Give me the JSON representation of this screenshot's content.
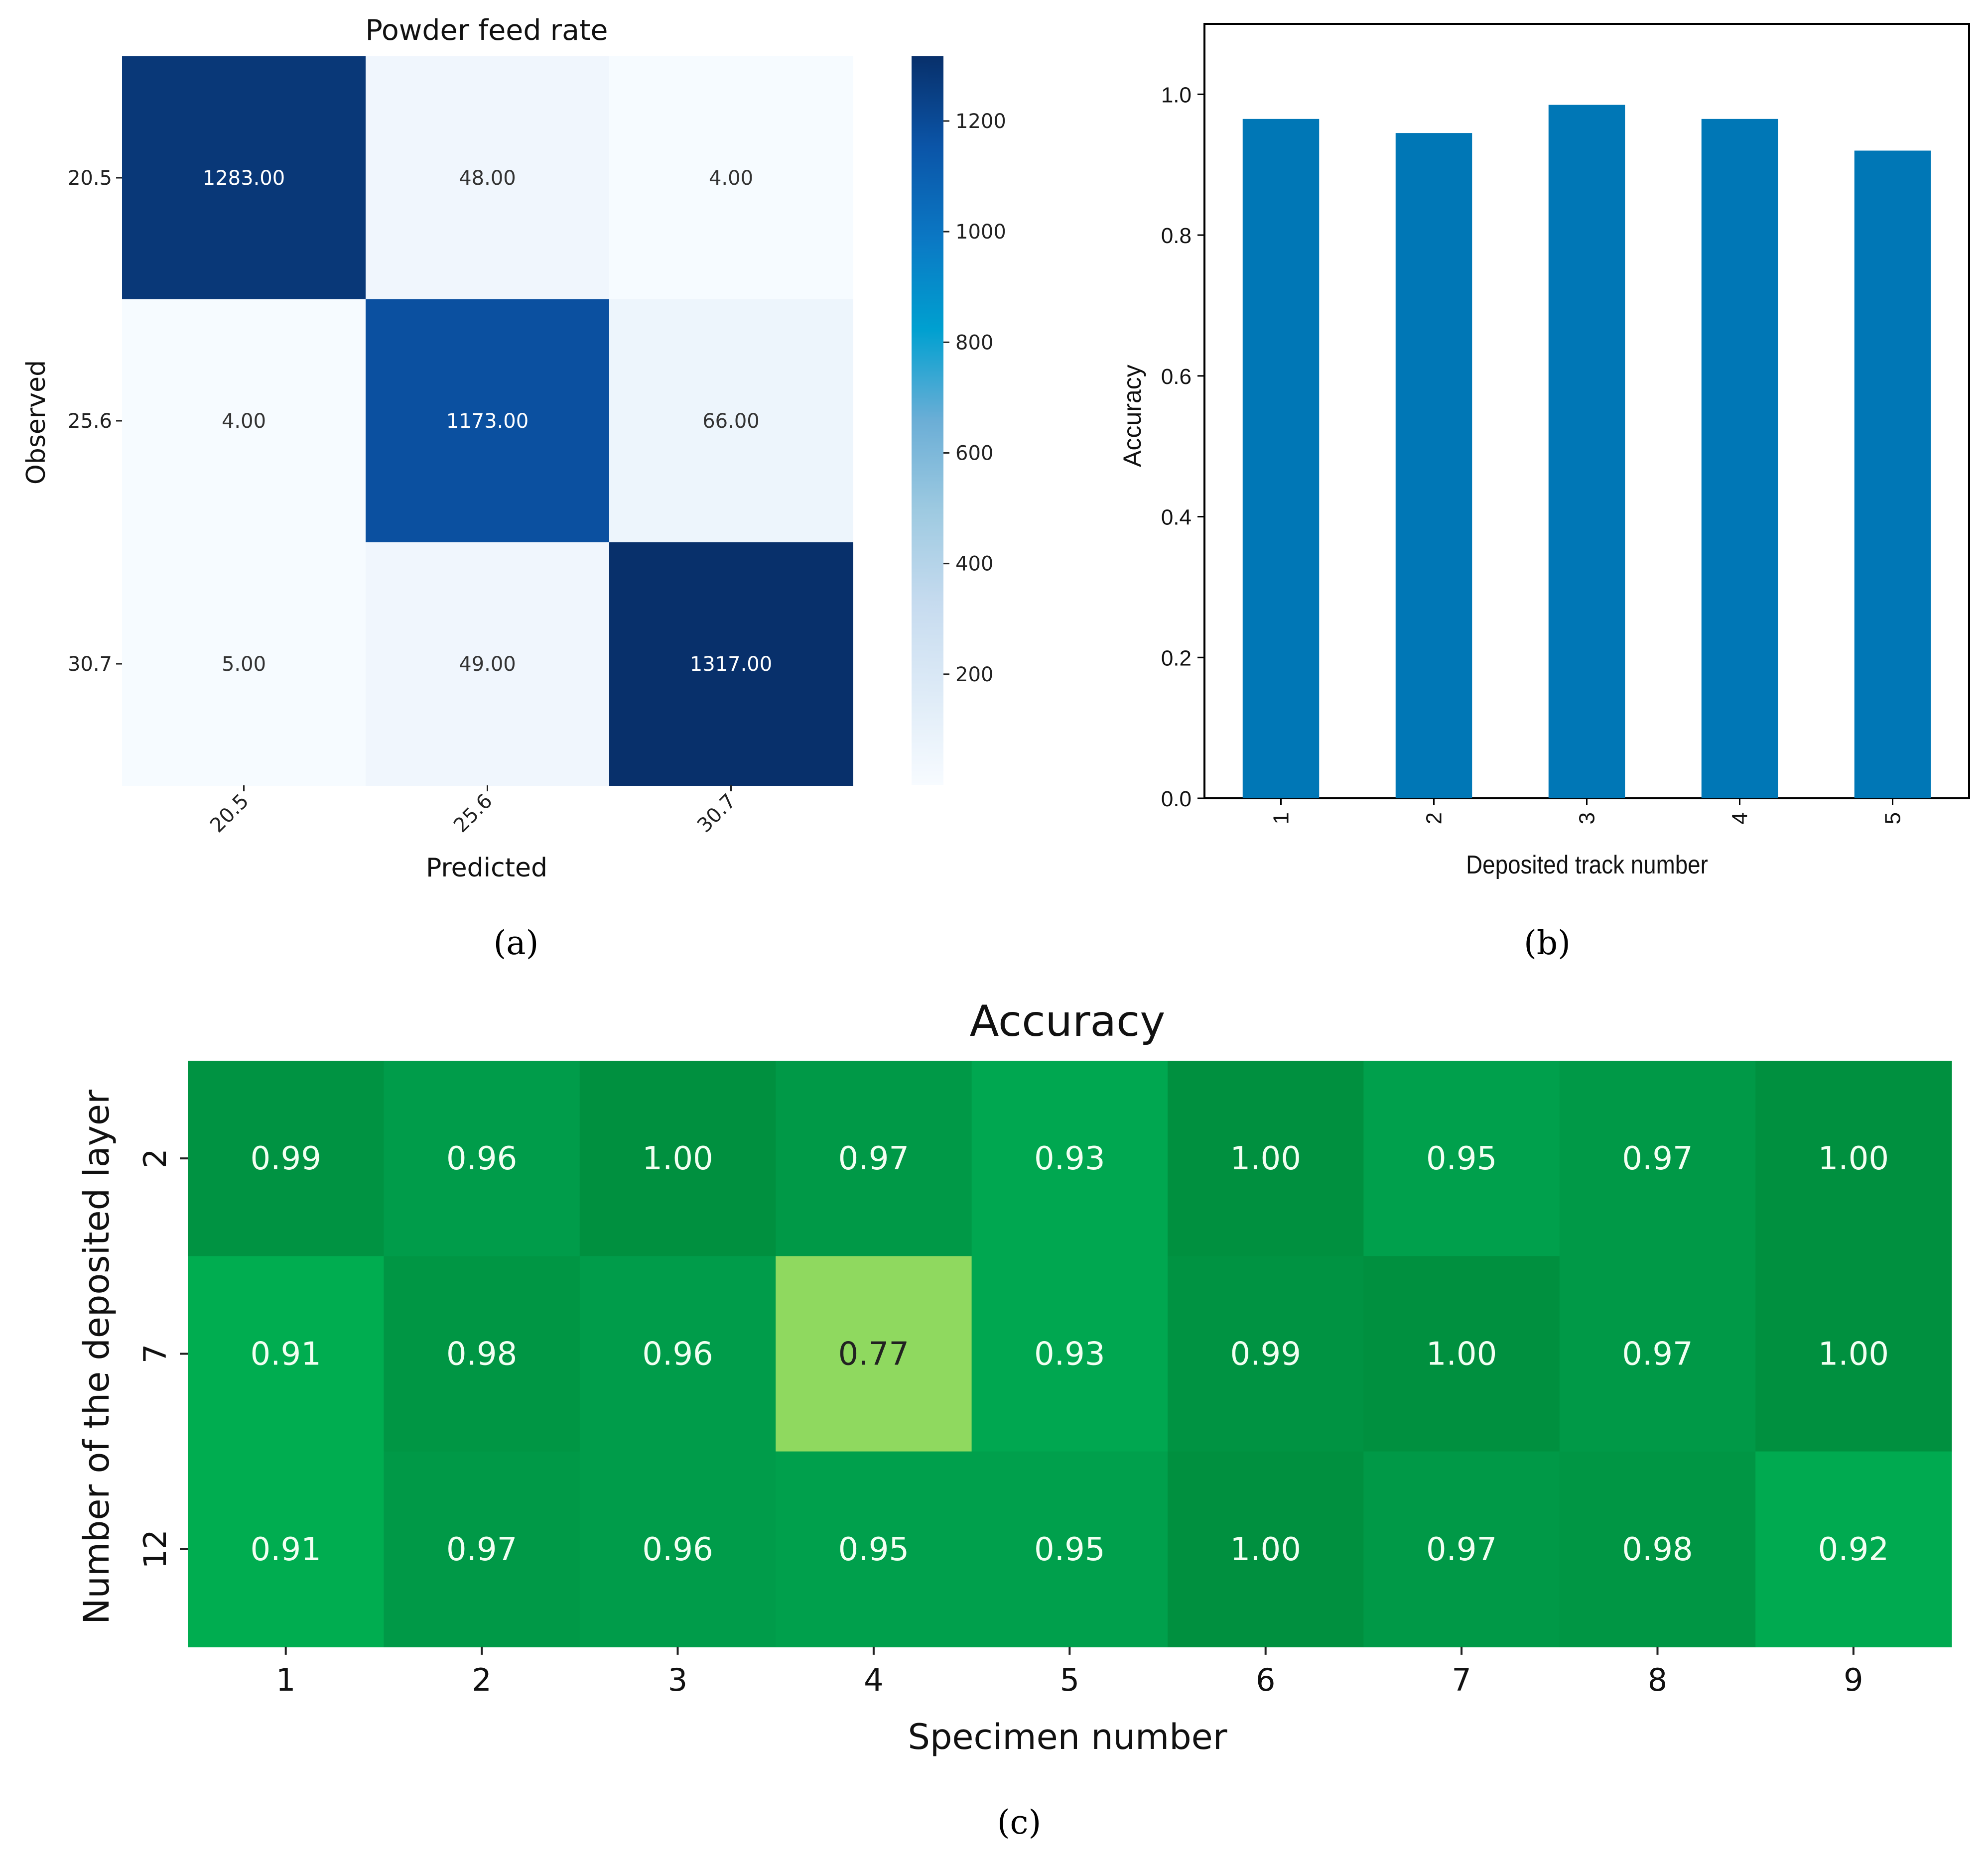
{
  "colors": {
    "bar": "#0077b6",
    "blues": [
      "#f7fbff",
      "#deebf7",
      "#c6dbef",
      "#9ecae1",
      "#6baed6",
      "#00a0d0",
      "#0b78c4",
      "#0b55a8",
      "#08306b"
    ],
    "greens": [
      "#8fd95f",
      "#00b050",
      "#00a650",
      "#009a48",
      "#00903f"
    ]
  },
  "panel_labels": {
    "a": "(a)",
    "b": "(b)",
    "c": "(c)"
  },
  "chart_data": [
    {
      "id": "a",
      "type": "heatmap",
      "title": "Powder feed rate",
      "xlabel": "Predicted",
      "ylabel": "Observed",
      "x_categories": [
        "20.5",
        "25.6",
        "30.7"
      ],
      "y_categories": [
        "20.5",
        "25.6",
        "30.7"
      ],
      "values": [
        [
          1283,
          48,
          4
        ],
        [
          4,
          1173,
          66
        ],
        [
          5,
          49,
          1317
        ]
      ],
      "cell_labels": [
        [
          "1283.00",
          "48.00",
          "4.00"
        ],
        [
          "4.00",
          "1173.00",
          "66.00"
        ],
        [
          "5.00",
          "49.00",
          "1317.00"
        ]
      ],
      "colorbar": {
        "range": [
          0,
          1317
        ],
        "ticks": [
          200,
          400,
          600,
          800,
          1000,
          1200
        ],
        "tick_labels": [
          "200",
          "400",
          "600",
          "800",
          "1000",
          "1200"
        ]
      }
    },
    {
      "id": "b",
      "type": "bar",
      "title": "",
      "xlabel": "Deposited track number",
      "ylabel": "Accuracy",
      "categories": [
        "1",
        "2",
        "3",
        "4",
        "5"
      ],
      "values": [
        0.965,
        0.945,
        0.985,
        0.965,
        0.92
      ],
      "ylim": [
        0,
        1.1
      ],
      "yticks": [
        0.0,
        0.2,
        0.4,
        0.6,
        0.8,
        1.0
      ],
      "ytick_labels": [
        "0.0",
        "0.2",
        "0.4",
        "0.6",
        "0.8",
        "1.0"
      ]
    },
    {
      "id": "c",
      "type": "heatmap",
      "title": "Accuracy",
      "xlabel": "Specimen number",
      "ylabel": "Number of the deposited layer",
      "x_categories": [
        "1",
        "2",
        "3",
        "4",
        "5",
        "6",
        "7",
        "8",
        "9"
      ],
      "y_categories": [
        "2",
        "7",
        "12"
      ],
      "values": [
        [
          0.99,
          0.96,
          1.0,
          0.97,
          0.93,
          1.0,
          0.95,
          0.97,
          1.0
        ],
        [
          0.91,
          0.98,
          0.96,
          0.77,
          0.93,
          0.99,
          1.0,
          0.97,
          1.0
        ],
        [
          0.91,
          0.97,
          0.96,
          0.95,
          0.95,
          1.0,
          0.97,
          0.98,
          0.92
        ]
      ],
      "cell_labels": [
        [
          "0.99",
          "0.96",
          "1.00",
          "0.97",
          "0.93",
          "1.00",
          "0.95",
          "0.97",
          "1.00"
        ],
        [
          "0.91",
          "0.98",
          "0.96",
          "0.77",
          "0.93",
          "0.99",
          "1.00",
          "0.97",
          "1.00"
        ],
        [
          "0.91",
          "0.97",
          "0.96",
          "0.95",
          "0.95",
          "1.00",
          "0.97",
          "0.98",
          "0.92"
        ]
      ]
    }
  ]
}
